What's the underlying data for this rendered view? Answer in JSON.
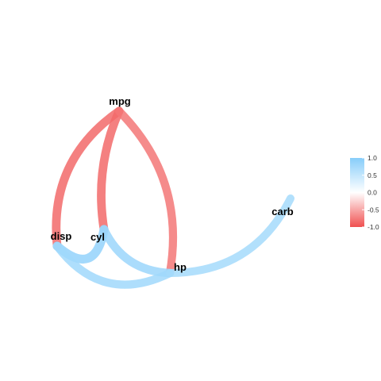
{
  "chart_data": {
    "type": "network",
    "nodes": [
      {
        "id": "mpg",
        "label": "mpg"
      },
      {
        "id": "cyl",
        "label": "cyl"
      },
      {
        "id": "disp",
        "label": "disp"
      },
      {
        "id": "hp",
        "label": "hp"
      },
      {
        "id": "carb",
        "label": "carb"
      }
    ],
    "edges": [
      {
        "from": "mpg",
        "to": "disp",
        "value": -0.85
      },
      {
        "from": "mpg",
        "to": "cyl",
        "value": -0.85
      },
      {
        "from": "mpg",
        "to": "hp",
        "value": -0.78
      },
      {
        "from": "disp",
        "to": "cyl",
        "value": 0.9
      },
      {
        "from": "cyl",
        "to": "hp",
        "value": 0.83
      },
      {
        "from": "disp",
        "to": "hp",
        "value": 0.79
      },
      {
        "from": "hp",
        "to": "carb",
        "value": 0.75
      }
    ],
    "legend": {
      "position": "right",
      "ticks": [
        "1.0",
        "0.5",
        "0.0",
        "-0.5",
        "-1.0"
      ],
      "range": [
        -1,
        1
      ],
      "colors": {
        "low": "#f05050",
        "mid": "#ffffff",
        "high": "#87cdfa"
      }
    }
  }
}
